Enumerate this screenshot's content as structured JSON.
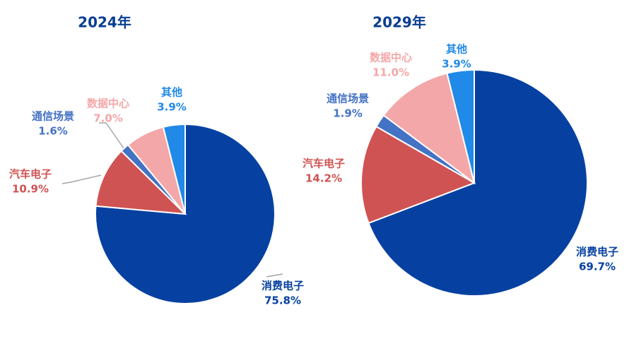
{
  "chart_data": [
    {
      "type": "pie",
      "title": "2024年",
      "categories": [
        "消费电子",
        "汽车电子",
        "通信场景",
        "数据中心",
        "其他"
      ],
      "values": [
        75.8,
        10.9,
        1.6,
        7.0,
        3.9
      ],
      "value_labels": [
        "75.8%",
        "10.9%",
        "1.6%",
        "7.0%",
        "3.9%"
      ],
      "colors": [
        "#0641a1",
        "#d05353",
        "#4472c4",
        "#f4a7a8",
        "#2189e8"
      ]
    },
    {
      "type": "pie",
      "title": "2029年",
      "categories": [
        "消费电子",
        "汽车电子",
        "通信场景",
        "数据中心",
        "其他"
      ],
      "values": [
        69.7,
        14.2,
        1.9,
        11.0,
        3.9
      ],
      "value_labels": [
        "69.7%",
        "14.2%",
        "1.9%",
        "11.0%",
        "3.9%"
      ],
      "colors": [
        "#0641a1",
        "#d05353",
        "#4472c4",
        "#f4a7a8",
        "#2189e8"
      ]
    }
  ]
}
